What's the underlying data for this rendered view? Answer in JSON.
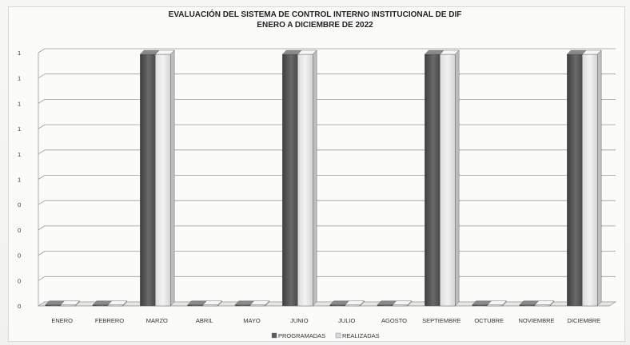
{
  "chart_data": {
    "type": "bar",
    "title": "EVALUACIÓN DEL SISTEMA DE CONTROL INTERNO INSTITUCIONAL DE DIF",
    "subtitle": "ENERO A DICIEMBRE DE 2022",
    "categories": [
      "ENERO",
      "FEBRERO",
      "MARZO",
      "ABRIL",
      "MAYO",
      "JUNIO",
      "JULIO",
      "AGOSTO",
      "SEPTIEMBRE",
      "OCTUBRE",
      "NOVIEMBRE",
      "DICIEMBRE"
    ],
    "series": [
      {
        "name": "PROGRAMADAS",
        "values": [
          0,
          0,
          1,
          0,
          0,
          1,
          0,
          0,
          1,
          0,
          0,
          1
        ],
        "color": "#5a5a5a"
      },
      {
        "name": "REALIZADAS",
        "values": [
          0,
          0,
          1,
          0,
          0,
          1,
          0,
          0,
          1,
          0,
          0,
          1
        ],
        "color": "#d9d9d9"
      }
    ],
    "ytick_labels": [
      "0",
      "0",
      "0",
      "0",
      "0",
      "1",
      "1",
      "1",
      "1",
      "1",
      "1"
    ],
    "ylim": [
      0,
      1
    ],
    "grid": true,
    "legend_position": "bottom",
    "style": "3d-clustered-column"
  }
}
